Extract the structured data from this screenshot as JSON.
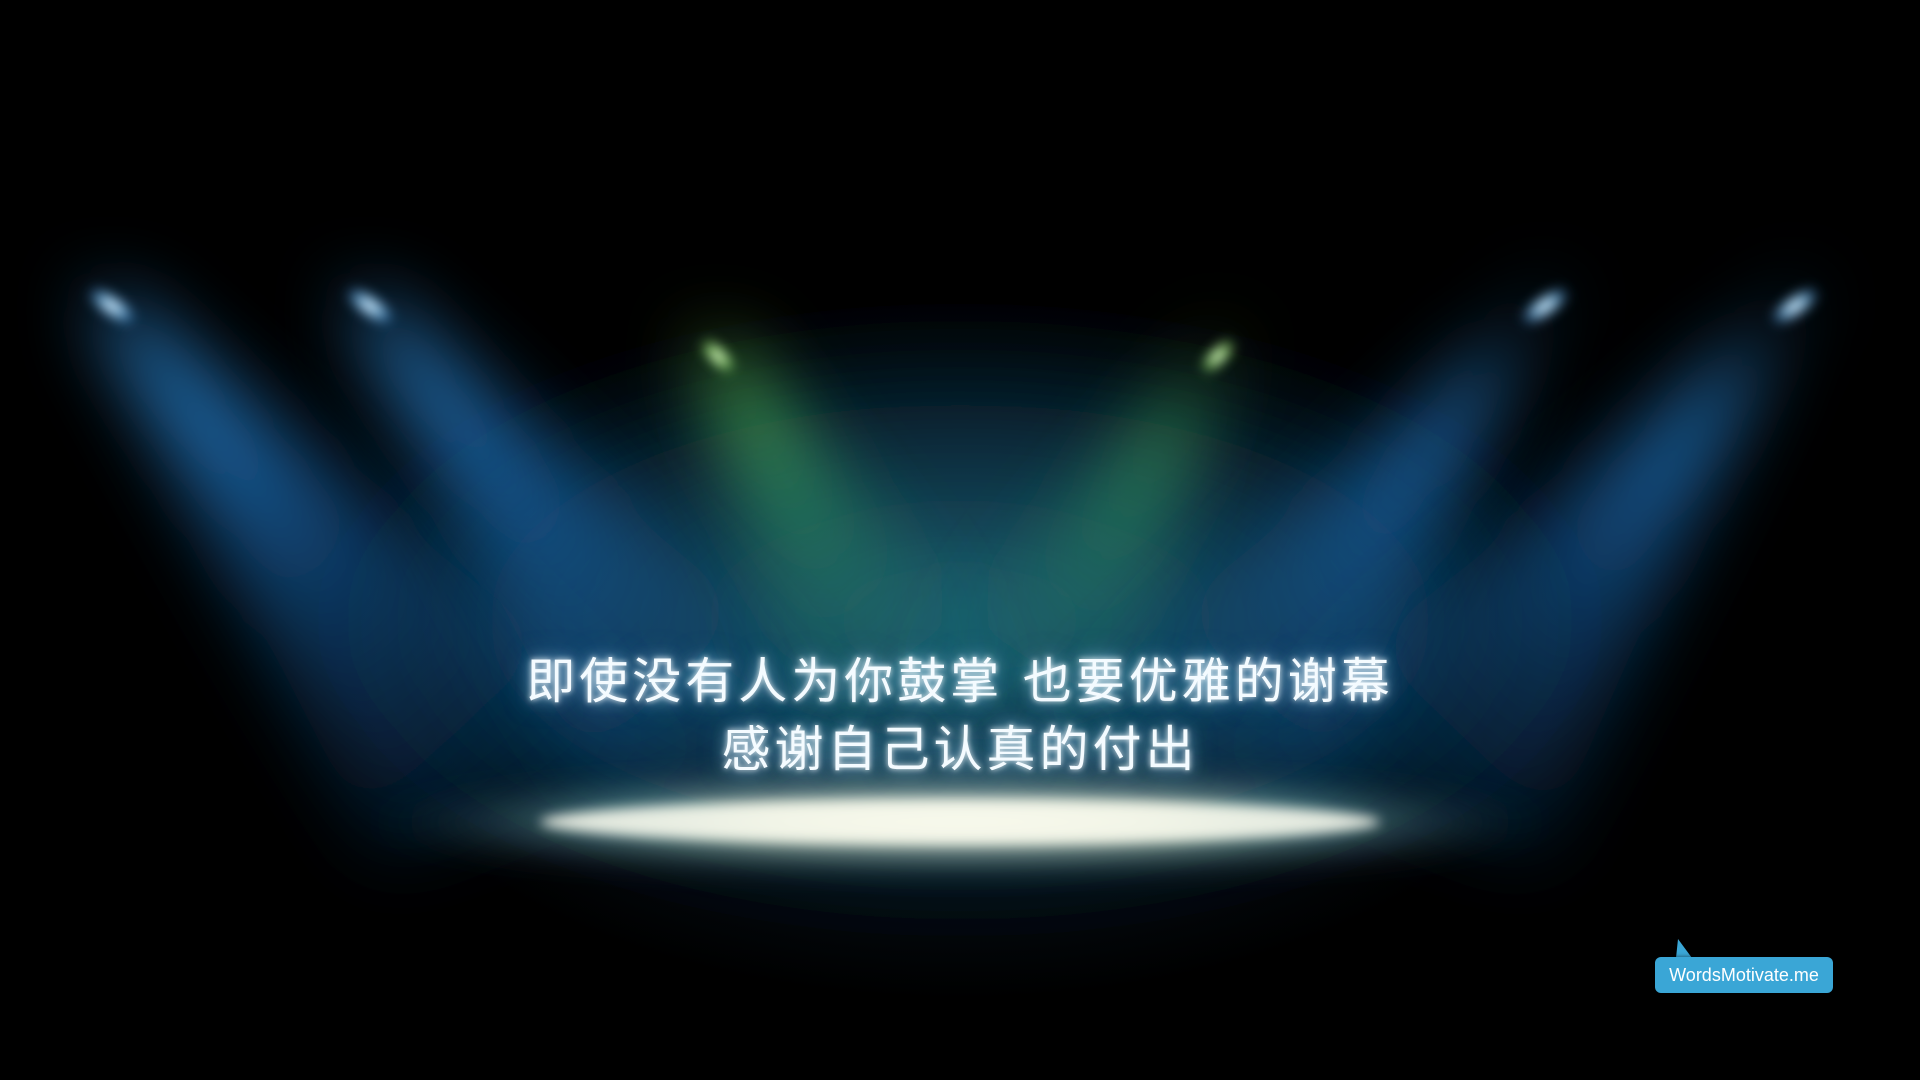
{
  "quote": {
    "line1": "即使没有人为你鼓掌 也要优雅的谢幕",
    "line2": "感谢自己认真的付出"
  },
  "watermark": {
    "label": "WordsMotivate.me",
    "color": "#3aa6d6"
  },
  "colors": {
    "background": "#000000",
    "spotlight_blue": "#2a9bff",
    "spotlight_green": "#6cff5a",
    "stage_glow": "#fffde8"
  }
}
